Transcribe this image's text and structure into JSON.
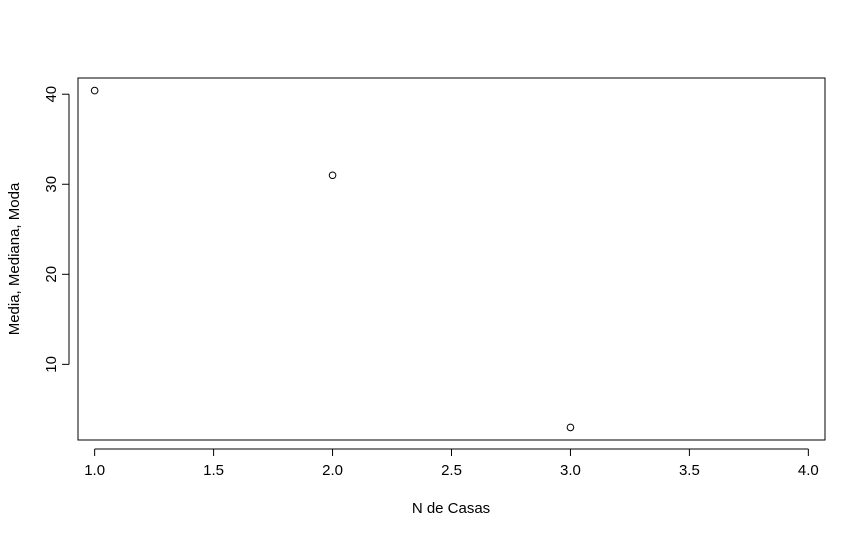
{
  "chart_data": {
    "type": "scatter",
    "title": "",
    "xlabel": "N de Casas",
    "ylabel": "Media, Mediana, Moda",
    "xlim": [
      0.93,
      4.07
    ],
    "ylim": [
      1.6,
      41.8
    ],
    "x_ticks": [
      1.0,
      1.5,
      2.0,
      2.5,
      3.0,
      3.5,
      4.0
    ],
    "x_tick_labels": [
      "1.0",
      "1.5",
      "2.0",
      "2.5",
      "3.0",
      "3.5",
      "4.0"
    ],
    "y_ticks": [
      10,
      20,
      30,
      40
    ],
    "y_tick_labels": [
      "10",
      "20",
      "30",
      "40"
    ],
    "grid": false,
    "legend": "none",
    "marker": "open-circle",
    "series": [
      {
        "x": [
          1,
          2,
          3
        ],
        "y": [
          40.4,
          31.0,
          3.0
        ]
      }
    ]
  }
}
